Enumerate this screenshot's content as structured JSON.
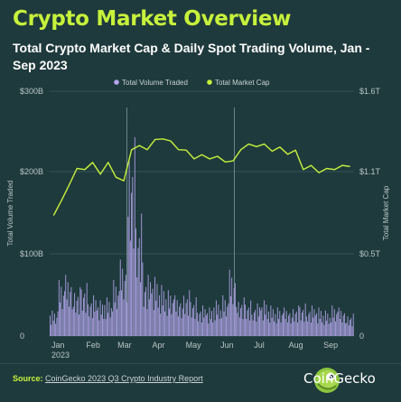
{
  "header": {
    "title": "Crypto Market Overview",
    "subtitle": "Total Crypto Market Cap & Daily Spot Trading Volume, Jan - Sep 2023"
  },
  "footer": {
    "source_label": "Source:",
    "source_text": "CoinGecko 2023 Q3 Crypto Industry Report",
    "brand": "CoinGecko"
  },
  "colors": {
    "background": "#1f3a3d",
    "market_cap_line": "#c6f23b",
    "volume_bars": "#b3a6ea",
    "title": "#c6f23b"
  },
  "chart_data": {
    "type": "bar",
    "combo": "bars (left axis) + line (right axis)",
    "x_tick_labels": [
      "Jan\n2023",
      "Feb",
      "Mar",
      "Apr",
      "May",
      "Jun",
      "Jul",
      "Aug",
      "Sep"
    ],
    "legend": {
      "position": "top-center",
      "entries": [
        "Total Volume Traded",
        "Total Market Cap"
      ]
    },
    "y_left": {
      "label": "Total Volume Traded",
      "ticks": [
        "0",
        "$100B",
        "$200B",
        "$300B"
      ],
      "range": [
        0,
        300
      ]
    },
    "y_right": {
      "label": "Total Market Cap",
      "ticks": [
        "0",
        "$0.5T",
        "$1.1T",
        "$1.6T"
      ],
      "range": [
        0,
        1.6
      ]
    },
    "grid": "horizontal",
    "reference_lines": [
      "2023-03-11",
      "2023-06-15"
    ],
    "series": [
      {
        "name": "Total Volume Traded",
        "kind": "bar",
        "axis": "left",
        "weekly_values": [
          25,
          55,
          60,
          48,
          52,
          40,
          35,
          38,
          55,
          75,
          195,
          120,
          60,
          58,
          50,
          45,
          40,
          45,
          38,
          30,
          28,
          35,
          40,
          65,
          38,
          35,
          32,
          35,
          30,
          28,
          28,
          30,
          32,
          30,
          28,
          25,
          30,
          28,
          22
        ]
      },
      {
        "name": "Total Market Cap",
        "kind": "line",
        "axis": "right",
        "weekly_values": [
          0.8,
          0.87,
          1.0,
          1.08,
          1.1,
          1.12,
          1.07,
          1.12,
          1.05,
          1.0,
          1.23,
          1.23,
          1.23,
          1.27,
          1.3,
          1.26,
          1.23,
          1.2,
          1.17,
          1.17,
          1.17,
          1.16,
          1.15,
          1.13,
          1.23,
          1.24,
          1.25,
          1.24,
          1.22,
          1.22,
          1.2,
          1.2,
          1.1,
          1.1,
          1.08,
          1.08,
          1.1,
          1.1,
          1.12
        ]
      }
    ]
  }
}
